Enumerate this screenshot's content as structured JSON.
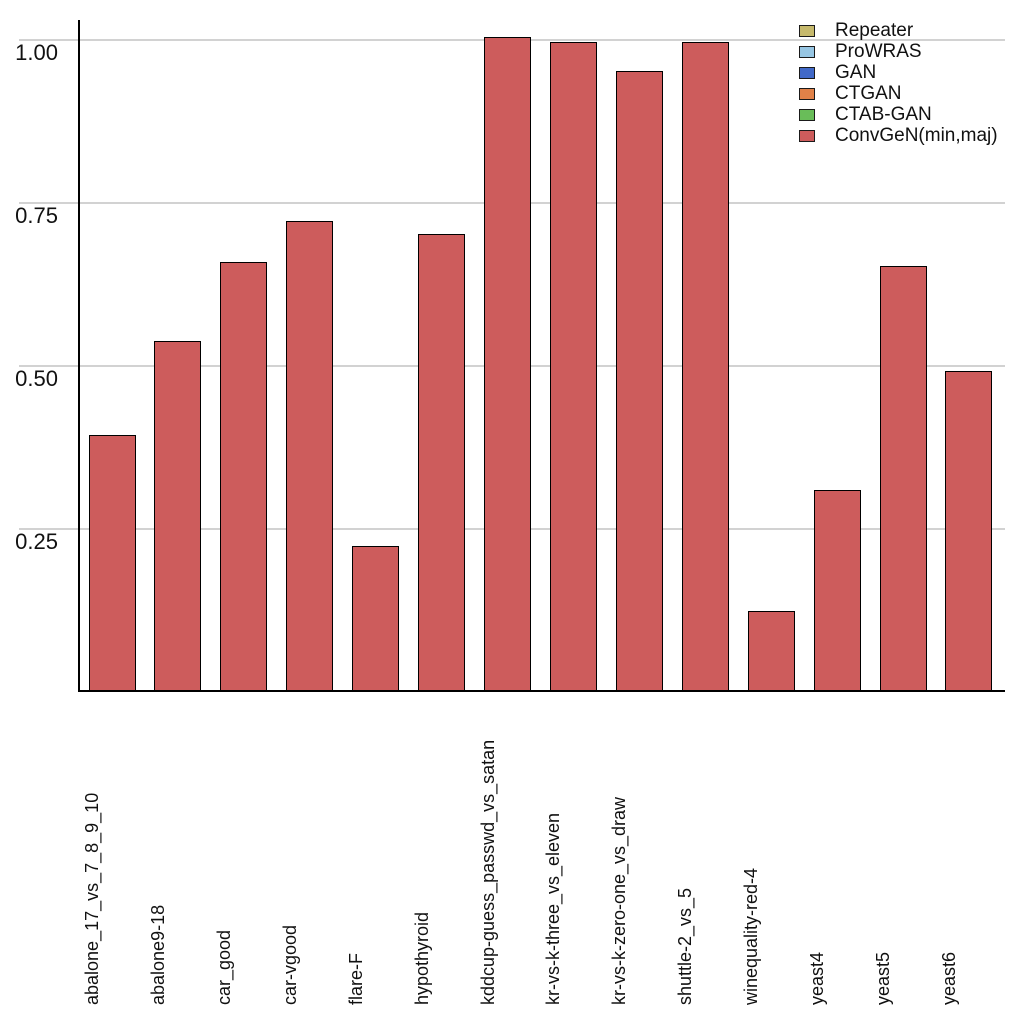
{
  "chart_data": {
    "type": "bar",
    "title": "",
    "xlabel": "",
    "ylabel": "",
    "categories": [
      "abalone_17_vs_7_8_9_10",
      "abalone9-18",
      "car_good",
      "car-vgood",
      "flare-F",
      "hypothyroid",
      "kddcup-guess_passwd_vs_satan",
      "kr-vs-k-three_vs_eleven",
      "kr-vs-k-zero-one_vs_draw",
      "shuttle-2_vs_5",
      "winequality-red-4",
      "yeast4",
      "yeast5",
      "yeast6"
    ],
    "values": [
      0.394,
      0.539,
      0.66,
      0.722,
      0.224,
      0.703,
      1.005,
      0.997,
      0.953,
      0.997,
      0.124,
      0.31,
      0.653,
      0.493
    ],
    "series_shown": "ConvGeN(min,maj)",
    "ylim": [
      0,
      1.05
    ],
    "grid": true,
    "yticks": [
      {
        "value": 1.0,
        "label": "1.00"
      },
      {
        "value": 0.75,
        "label": "0.75"
      },
      {
        "value": 0.5,
        "label": "0.50"
      },
      {
        "value": 0.25,
        "label": "0.25"
      }
    ],
    "bar_color": "#CD5C5C",
    "bar_edge_color": "#000000",
    "legend": {
      "position": "upper right",
      "entries": [
        {
          "label": "Repeater",
          "color": "#C6B96C"
        },
        {
          "label": "ProWRAS",
          "color": "#97C6E3"
        },
        {
          "label": "GAN",
          "color": "#4169C8"
        },
        {
          "label": "CTGAN",
          "color": "#E08148"
        },
        {
          "label": "CTAB-GAN",
          "color": "#69BD59"
        },
        {
          "label": "ConvGeN(min,maj)",
          "color": "#CD5C5C"
        }
      ]
    }
  }
}
